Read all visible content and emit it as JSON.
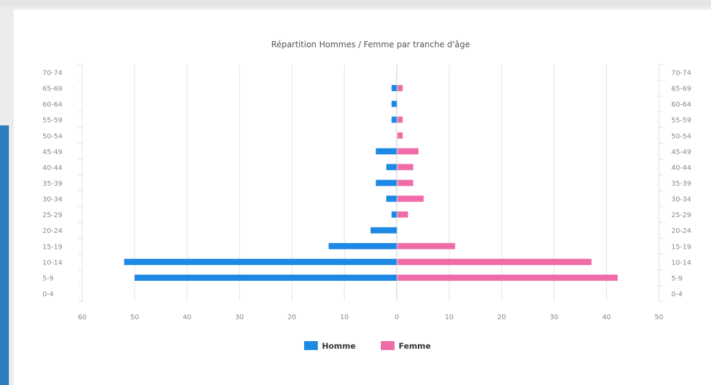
{
  "chart_data": {
    "type": "bar",
    "orientation": "horizontal",
    "title": "Répartition Hommes / Femme par tranche d'âge",
    "categories": [
      "0-4",
      "5-9",
      "10-14",
      "15-19",
      "20-24",
      "25-29",
      "30-34",
      "35-39",
      "40-44",
      "45-49",
      "50-54",
      "55-59",
      "60-64",
      "65-69",
      "70-74"
    ],
    "series": [
      {
        "name": "Homme",
        "color": "#1e88e5",
        "values": [
          0,
          50,
          52,
          13,
          5,
          1,
          2,
          4,
          2,
          4,
          0,
          1,
          1,
          1,
          0
        ]
      },
      {
        "name": "Femme",
        "color": "#f06ca8",
        "values": [
          0,
          42,
          37,
          11,
          0,
          2,
          5,
          3,
          3,
          4,
          1,
          1,
          0,
          1,
          0
        ]
      }
    ],
    "x_ticks": [
      "60",
      "50",
      "40",
      "30",
      "20",
      "10",
      "0",
      "10",
      "20",
      "30",
      "40",
      "50"
    ],
    "xlim": [
      -60,
      50
    ],
    "grid": true,
    "legend_position": "bottom"
  }
}
